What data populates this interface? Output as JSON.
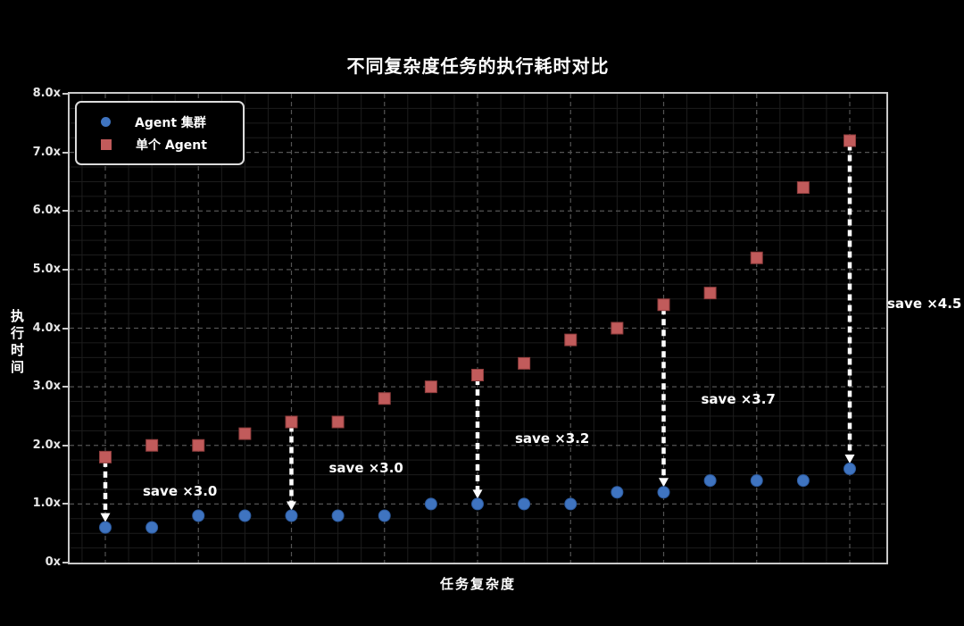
{
  "chart_data": {
    "type": "scatter",
    "title": "不同复杂度任务的执行耗时对比",
    "xlabel": "任务复杂度",
    "ylabel": "执行时间",
    "ylim": [
      0,
      8
    ],
    "x_category_count": 17,
    "grid": "dashed major gridlines with faint minor grid, dark theme",
    "legend_position": "upper-left",
    "yticks": [
      {
        "value": 0,
        "label": "0x"
      },
      {
        "value": 1,
        "label": "1.0x"
      },
      {
        "value": 2,
        "label": "2.0x"
      },
      {
        "value": 3,
        "label": "3.0x"
      },
      {
        "value": 4,
        "label": "4.0x"
      },
      {
        "value": 5,
        "label": "5.0x"
      },
      {
        "value": 6,
        "label": "6.0x"
      },
      {
        "value": 7,
        "label": "7.0x"
      },
      {
        "value": 8,
        "label": "8.0x"
      }
    ],
    "series": [
      {
        "name": "Agent 集群",
        "marker": "circle",
        "color": "#3f74c0",
        "edge_color": "#2c5a9e",
        "values": [
          0.6,
          0.6,
          0.8,
          0.8,
          0.8,
          0.8,
          0.8,
          1.0,
          1.0,
          1.0,
          1.0,
          1.2,
          1.2,
          1.4,
          1.4,
          1.4,
          1.6
        ]
      },
      {
        "name": "单个 Agent",
        "marker": "square",
        "color": "#c15b5b",
        "edge_color": "#8f3d3d",
        "values": [
          1.8,
          2.0,
          2.0,
          2.2,
          2.4,
          2.4,
          2.8,
          3.0,
          3.2,
          3.4,
          3.8,
          4.0,
          4.4,
          4.6,
          5.2,
          6.4,
          7.2
        ]
      }
    ],
    "annotations": [
      {
        "at_index": 0,
        "text": "save ×3.0",
        "text_y": 1.22
      },
      {
        "at_index": 4,
        "text": "save ×3.0",
        "text_y": 1.62
      },
      {
        "at_index": 8,
        "text": "save ×3.2",
        "text_y": 2.12
      },
      {
        "at_index": 12,
        "text": "save ×3.7",
        "text_y": 2.79
      },
      {
        "at_index": 16,
        "text": "save ×4.5",
        "text_y": 4.42
      }
    ],
    "annotation_style": {
      "arrow_color": "#ffffff",
      "arrow_dashed": true,
      "arrow_direction": "down"
    }
  },
  "colors": {
    "background": "#000000",
    "frame": "#c9c9c9",
    "grid_major": "#545454",
    "grid_minor": "#1d1d1d",
    "tick_label": "#e6e6e6",
    "text": "#ffffff"
  }
}
